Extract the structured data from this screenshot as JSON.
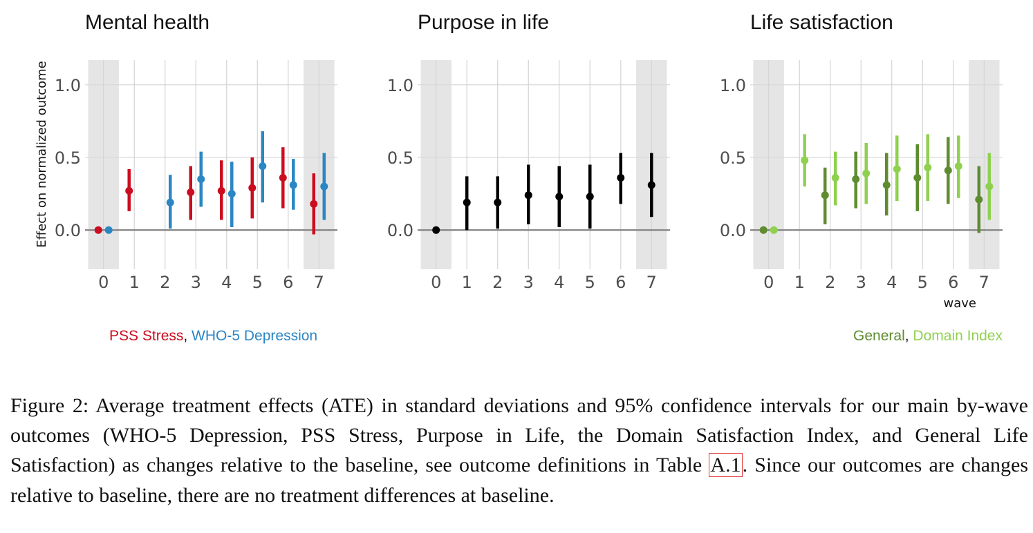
{
  "chart_data": [
    {
      "type": "pointrange",
      "title": "Mental health",
      "xlabel": "",
      "ylabel": "Effect on normalized outcome",
      "x": [
        0,
        1,
        2,
        3,
        4,
        5,
        6,
        7
      ],
      "x_tick_labels": [
        "0",
        "1",
        "2",
        "3",
        "4",
        "5",
        "6",
        "7"
      ],
      "y_tick_labels": [
        "0.0",
        "0.5",
        "1.0"
      ],
      "y_ticks": [
        0.0,
        0.5,
        1.0
      ],
      "ylim": [
        -0.27,
        1.17
      ],
      "xlim": [
        -0.6,
        7.6
      ],
      "shaded_waves": [
        0,
        7
      ],
      "grid": true,
      "legend": "bottom-left",
      "series": [
        {
          "name": "PSS Stress",
          "color": "#cc0c1f",
          "points": [
            {
              "wave": 0,
              "estimate": 0.0,
              "lower": null,
              "upper": null
            },
            {
              "wave": 1,
              "estimate": 0.27,
              "lower": 0.13,
              "upper": 0.42
            },
            {
              "wave": 3,
              "estimate": 0.26,
              "lower": 0.07,
              "upper": 0.44
            },
            {
              "wave": 4,
              "estimate": 0.27,
              "lower": 0.07,
              "upper": 0.48
            },
            {
              "wave": 5,
              "estimate": 0.29,
              "lower": 0.08,
              "upper": 0.5
            },
            {
              "wave": 6,
              "estimate": 0.36,
              "lower": 0.15,
              "upper": 0.57
            },
            {
              "wave": 7,
              "estimate": 0.18,
              "lower": -0.03,
              "upper": 0.39
            }
          ]
        },
        {
          "name": "WHO-5 Depression",
          "color": "#2b86c4",
          "points": [
            {
              "wave": 0,
              "estimate": 0.0,
              "lower": null,
              "upper": null
            },
            {
              "wave": 2,
              "estimate": 0.19,
              "lower": 0.01,
              "upper": 0.38
            },
            {
              "wave": 3,
              "estimate": 0.35,
              "lower": 0.16,
              "upper": 0.54
            },
            {
              "wave": 4,
              "estimate": 0.25,
              "lower": 0.02,
              "upper": 0.47
            },
            {
              "wave": 5,
              "estimate": 0.44,
              "lower": 0.19,
              "upper": 0.68
            },
            {
              "wave": 6,
              "estimate": 0.31,
              "lower": 0.14,
              "upper": 0.49
            },
            {
              "wave": 7,
              "estimate": 0.3,
              "lower": 0.07,
              "upper": 0.53
            }
          ]
        }
      ]
    },
    {
      "type": "pointrange",
      "title": "Purpose in life",
      "xlabel": "",
      "ylabel": "",
      "x": [
        0,
        1,
        2,
        3,
        4,
        5,
        6,
        7
      ],
      "x_tick_labels": [
        "0",
        "1",
        "2",
        "3",
        "4",
        "5",
        "6",
        "7"
      ],
      "y_tick_labels": [
        "0.0",
        "0.5",
        "1.0"
      ],
      "y_ticks": [
        0.0,
        0.5,
        1.0
      ],
      "ylim": [
        -0.27,
        1.17
      ],
      "xlim": [
        -0.6,
        7.6
      ],
      "shaded_waves": [
        0,
        7
      ],
      "grid": true,
      "legend": "none",
      "series": [
        {
          "name": "Purpose in Life",
          "color": "#000000",
          "points": [
            {
              "wave": 0,
              "estimate": 0.0,
              "lower": null,
              "upper": null
            },
            {
              "wave": 1,
              "estimate": 0.19,
              "lower": 0.0,
              "upper": 0.37
            },
            {
              "wave": 2,
              "estimate": 0.19,
              "lower": 0.01,
              "upper": 0.37
            },
            {
              "wave": 3,
              "estimate": 0.24,
              "lower": 0.04,
              "upper": 0.45
            },
            {
              "wave": 4,
              "estimate": 0.23,
              "lower": 0.02,
              "upper": 0.44
            },
            {
              "wave": 5,
              "estimate": 0.23,
              "lower": 0.01,
              "upper": 0.45
            },
            {
              "wave": 6,
              "estimate": 0.36,
              "lower": 0.18,
              "upper": 0.53
            },
            {
              "wave": 7,
              "estimate": 0.31,
              "lower": 0.09,
              "upper": 0.53
            }
          ]
        }
      ]
    },
    {
      "type": "pointrange",
      "title": "Life satisfaction",
      "xlabel": "wave",
      "ylabel": "",
      "x": [
        0,
        1,
        2,
        3,
        4,
        5,
        6,
        7
      ],
      "x_tick_labels": [
        "0",
        "1",
        "2",
        "3",
        "4",
        "5",
        "6",
        "7"
      ],
      "y_tick_labels": [
        "0.0",
        "0.5",
        "1.0"
      ],
      "y_ticks": [
        0.0,
        0.5,
        1.0
      ],
      "ylim": [
        -0.27,
        1.17
      ],
      "xlim": [
        -0.6,
        7.6
      ],
      "shaded_waves": [
        0,
        7
      ],
      "grid": true,
      "legend": "bottom-right",
      "series": [
        {
          "name": "General",
          "color": "#5e8c2f",
          "points": [
            {
              "wave": 0,
              "estimate": 0.0,
              "lower": null,
              "upper": null
            },
            {
              "wave": 2,
              "estimate": 0.24,
              "lower": 0.04,
              "upper": 0.43
            },
            {
              "wave": 3,
              "estimate": 0.35,
              "lower": 0.15,
              "upper": 0.54
            },
            {
              "wave": 4,
              "estimate": 0.31,
              "lower": 0.1,
              "upper": 0.53
            },
            {
              "wave": 5,
              "estimate": 0.36,
              "lower": 0.13,
              "upper": 0.59
            },
            {
              "wave": 6,
              "estimate": 0.41,
              "lower": 0.18,
              "upper": 0.64
            },
            {
              "wave": 7,
              "estimate": 0.21,
              "lower": -0.02,
              "upper": 0.44
            }
          ]
        },
        {
          "name": "Domain Index",
          "color": "#8fd14f",
          "points": [
            {
              "wave": 0,
              "estimate": 0.0,
              "lower": null,
              "upper": null
            },
            {
              "wave": 1,
              "estimate": 0.48,
              "lower": 0.3,
              "upper": 0.66
            },
            {
              "wave": 2,
              "estimate": 0.36,
              "lower": 0.17,
              "upper": 0.54
            },
            {
              "wave": 3,
              "estimate": 0.39,
              "lower": 0.18,
              "upper": 0.6
            },
            {
              "wave": 4,
              "estimate": 0.42,
              "lower": 0.2,
              "upper": 0.65
            },
            {
              "wave": 5,
              "estimate": 0.43,
              "lower": 0.2,
              "upper": 0.66
            },
            {
              "wave": 6,
              "estimate": 0.44,
              "lower": 0.22,
              "upper": 0.65
            },
            {
              "wave": 7,
              "estimate": 0.3,
              "lower": 0.07,
              "upper": 0.53
            }
          ]
        }
      ]
    }
  ],
  "legends": {
    "mental": {
      "first": "PSS Stress",
      "separator": ", ",
      "second": "WHO-5 Depression"
    },
    "life": {
      "first": "General",
      "separator": ", ",
      "second": "Domain Index"
    }
  },
  "caption": {
    "prefix": "Figure 2: Average treatment effects (ATE) in standard deviations and 95% confidence intervals for our main by-wave outcomes (WHO-5 Depression, PSS Stress, Purpose in Life, the Domain Satisfaction Index, and General Life Satisfaction) as changes relative to the baseline, see outcome definitions in Table ",
    "ref": "A.1",
    "suffix": ".  Since our outcomes are changes relative to baseline, there are no treatment differences at baseline."
  }
}
